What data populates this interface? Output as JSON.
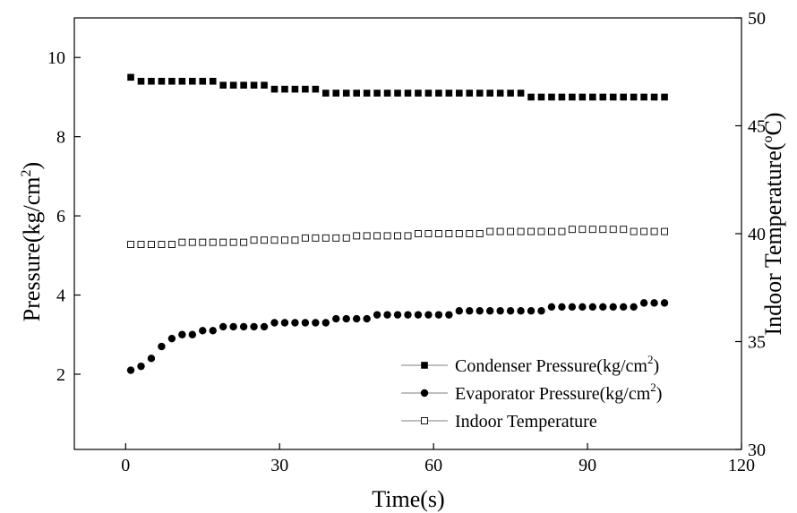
{
  "chart_data": {
    "type": "scatter",
    "xlabel": "Time(s)",
    "ylabel_left": {
      "main": "Pressure(kg/cm",
      "sup": "2",
      "tail": ")"
    },
    "ylabel_right": {
      "main": "Indoor Temperature(",
      "sup": "o",
      "tail": "C)"
    },
    "xlim": [
      -10,
      120
    ],
    "xticks": [
      0,
      30,
      60,
      90,
      120
    ],
    "ylim_left": [
      0.1,
      11.0
    ],
    "yticks_left": [
      2,
      4,
      6,
      8,
      10
    ],
    "ylim_right": [
      30,
      50
    ],
    "yticks_right": [
      30,
      35,
      40,
      45,
      50
    ],
    "legend_position": "lower-right",
    "grid": false,
    "series": [
      {
        "name": "Condenser Pressure(kg/cm2)",
        "legend": {
          "main": "Condenser Pressure(kg/cm",
          "sup": "2",
          "tail": ")"
        },
        "axis": "left",
        "marker": "filled-square",
        "x": [
          1,
          3,
          5,
          7,
          9,
          11,
          13,
          15,
          17,
          19,
          21,
          23,
          25,
          27,
          29,
          31,
          33,
          35,
          37,
          39,
          41,
          43,
          45,
          47,
          49,
          51,
          53,
          55,
          57,
          59,
          61,
          63,
          65,
          67,
          69,
          71,
          73,
          75,
          77,
          79,
          81,
          83,
          85,
          87,
          89,
          91,
          93,
          95,
          97,
          99,
          101,
          103,
          105
        ],
        "y": [
          9.5,
          9.4,
          9.4,
          9.4,
          9.4,
          9.4,
          9.4,
          9.4,
          9.4,
          9.3,
          9.3,
          9.3,
          9.3,
          9.3,
          9.2,
          9.2,
          9.2,
          9.2,
          9.2,
          9.1,
          9.1,
          9.1,
          9.1,
          9.1,
          9.1,
          9.1,
          9.1,
          9.1,
          9.1,
          9.1,
          9.1,
          9.1,
          9.1,
          9.1,
          9.1,
          9.1,
          9.1,
          9.1,
          9.1,
          9.0,
          9.0,
          9.0,
          9.0,
          9.0,
          9.0,
          9.0,
          9.0,
          9.0,
          9.0,
          9.0,
          9.0,
          9.0,
          9.0
        ]
      },
      {
        "name": "Evaporator Pressure(kg/cm2)",
        "legend": {
          "main": "Evaporator Pressure(kg/cm",
          "sup": "2",
          "tail": ")"
        },
        "axis": "left",
        "marker": "filled-circle",
        "x": [
          1,
          3,
          5,
          7,
          9,
          11,
          13,
          15,
          17,
          19,
          21,
          23,
          25,
          27,
          29,
          31,
          33,
          35,
          37,
          39,
          41,
          43,
          45,
          47,
          49,
          51,
          53,
          55,
          57,
          59,
          61,
          63,
          65,
          67,
          69,
          71,
          73,
          75,
          77,
          79,
          81,
          83,
          85,
          87,
          89,
          91,
          93,
          95,
          97,
          99,
          101,
          103,
          105
        ],
        "y": [
          2.1,
          2.2,
          2.4,
          2.7,
          2.9,
          3.0,
          3.0,
          3.1,
          3.1,
          3.2,
          3.2,
          3.2,
          3.2,
          3.2,
          3.3,
          3.3,
          3.3,
          3.3,
          3.3,
          3.3,
          3.4,
          3.4,
          3.4,
          3.4,
          3.5,
          3.5,
          3.5,
          3.5,
          3.5,
          3.5,
          3.5,
          3.5,
          3.6,
          3.6,
          3.6,
          3.6,
          3.6,
          3.6,
          3.6,
          3.6,
          3.6,
          3.7,
          3.7,
          3.7,
          3.7,
          3.7,
          3.7,
          3.7,
          3.7,
          3.7,
          3.8,
          3.8,
          3.8
        ]
      },
      {
        "name": "Indoor Temperature",
        "legend": {
          "main": "Indoor Temperature",
          "sup": "",
          "tail": ""
        },
        "axis": "right",
        "marker": "hollow-square",
        "x": [
          1,
          3,
          5,
          7,
          9,
          11,
          13,
          15,
          17,
          19,
          21,
          23,
          25,
          27,
          29,
          31,
          33,
          35,
          37,
          39,
          41,
          43,
          45,
          47,
          49,
          51,
          53,
          55,
          57,
          59,
          61,
          63,
          65,
          67,
          69,
          71,
          73,
          75,
          77,
          79,
          81,
          83,
          85,
          87,
          89,
          91,
          93,
          95,
          97,
          99,
          101,
          103,
          105
        ],
        "y": [
          39.5,
          39.5,
          39.5,
          39.5,
          39.5,
          39.6,
          39.6,
          39.6,
          39.6,
          39.6,
          39.6,
          39.6,
          39.7,
          39.7,
          39.7,
          39.7,
          39.7,
          39.8,
          39.8,
          39.8,
          39.8,
          39.8,
          39.9,
          39.9,
          39.9,
          39.9,
          39.9,
          39.9,
          40.0,
          40.0,
          40.0,
          40.0,
          40.0,
          40.0,
          40.0,
          40.1,
          40.1,
          40.1,
          40.1,
          40.1,
          40.1,
          40.1,
          40.1,
          40.2,
          40.2,
          40.2,
          40.2,
          40.2,
          40.2,
          40.1,
          40.1,
          40.1,
          40.1
        ]
      }
    ]
  }
}
